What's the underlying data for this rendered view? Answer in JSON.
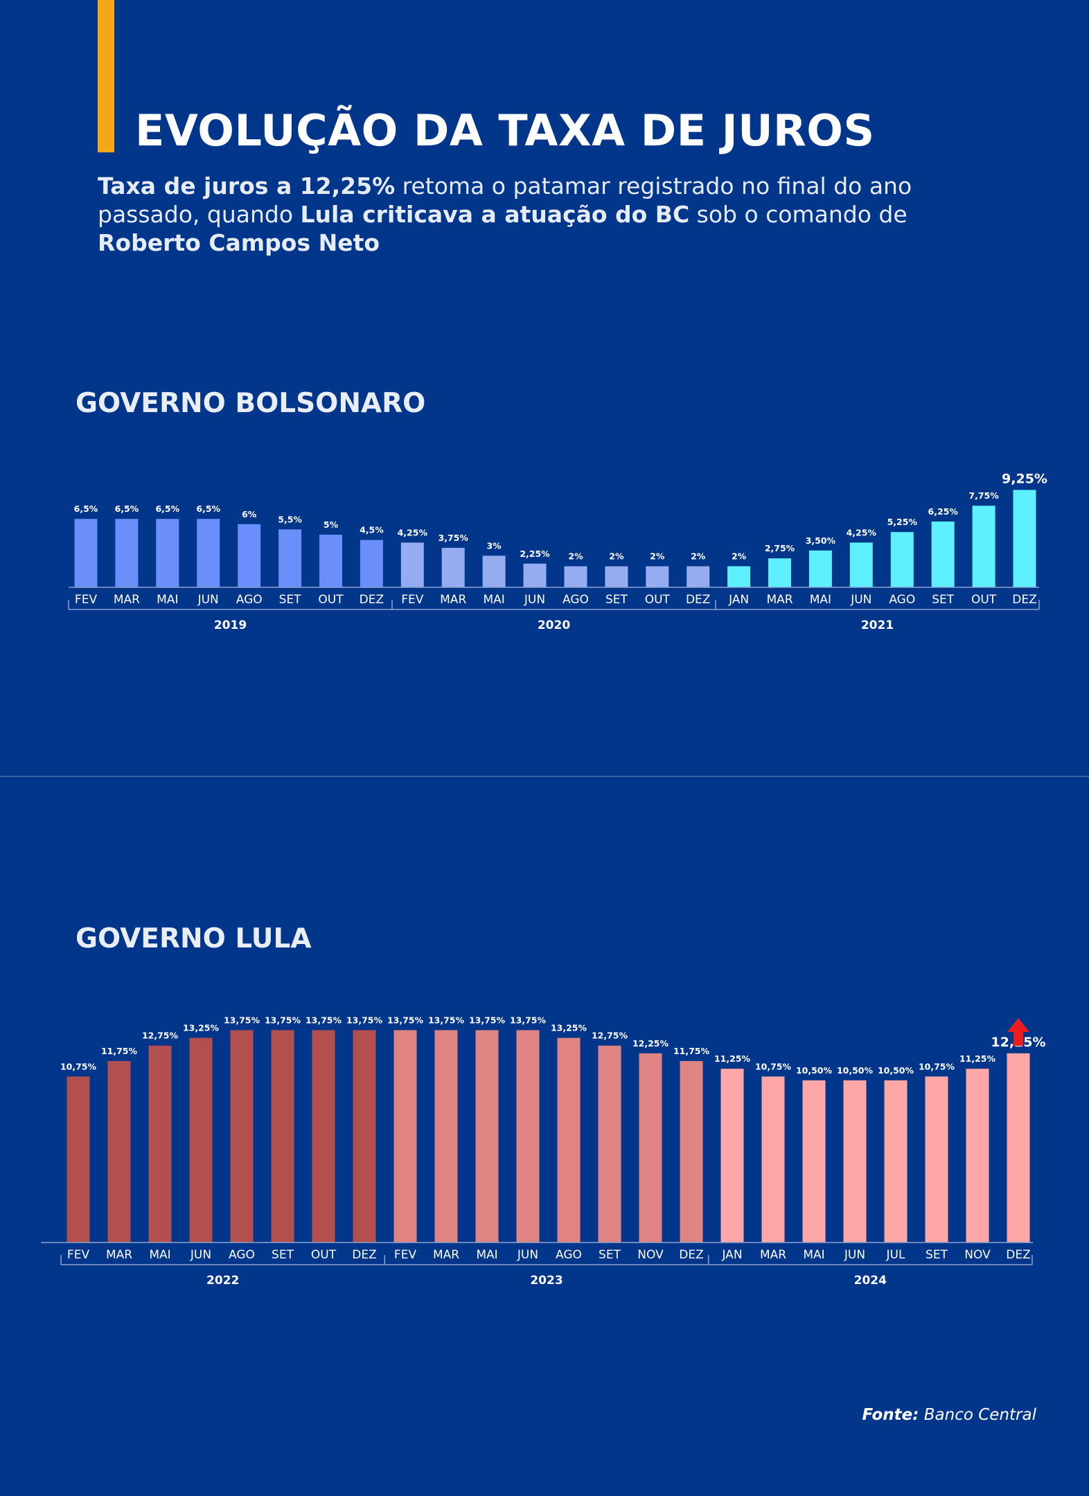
{
  "title": "EVOLUÇÃO DA TAXA DE JUROS",
  "subtitle": {
    "line1_bold": "Taxa de juros a 12,25%",
    "line1_rest": " retoma o patamar registrado no final do ano",
    "line2_start": "passado, quando ",
    "line2_bold": "Lula criticava a atuação do BC",
    "line2_rest": " sob o comando de",
    "line3_bold": "Roberto Campos Neto"
  },
  "source": {
    "label": "Fonte:",
    "text": " Banco Central"
  },
  "colors": {
    "background": "#02368a",
    "accent": "#f6a716",
    "bolsonaro_2019": "#6a8ffb",
    "bolsonaro_2020": "#96acf1",
    "bolsonaro_2021": "#5ef0ff",
    "lula_2022": "#b34f4f",
    "lula_2023": "#df8383",
    "lula_2024": "#ffa6a6",
    "arrow": "#ee1c1c"
  },
  "arrow_icon": "up-arrow-icon",
  "chart_data": [
    {
      "type": "bar",
      "title": "GOVERNO BOLSONARO",
      "groups": [
        {
          "year": "2019",
          "categories": [
            "FEV",
            "MAR",
            "MAI",
            "JUN",
            "AGO",
            "SET",
            "OUT",
            "DEZ"
          ],
          "values": [
            6.5,
            6.5,
            6.5,
            6.5,
            6,
            5.5,
            5,
            4.5
          ],
          "labels": [
            "6,5%",
            "6,5%",
            "6,5%",
            "6,5%",
            "6%",
            "5,5%",
            "5%",
            "4,5%"
          ]
        },
        {
          "year": "2020",
          "categories": [
            "FEV",
            "MAR",
            "MAI",
            "JUN",
            "AGO",
            "SET",
            "OUT",
            "DEZ"
          ],
          "values": [
            4.25,
            3.75,
            3,
            2.25,
            2,
            2,
            2,
            2
          ],
          "labels": [
            "4,25%",
            "3,75%",
            "3%",
            "2,25%",
            "2%",
            "2%",
            "2%",
            "2%"
          ]
        },
        {
          "year": "2021",
          "categories": [
            "JAN",
            "MAR",
            "MAI",
            "JUN",
            "AGO",
            "SET",
            "OUT",
            "DEZ"
          ],
          "values": [
            2,
            2.75,
            3.5,
            4.25,
            5.25,
            6.25,
            7.75,
            9.25
          ],
          "labels": [
            "2%",
            "2,75%",
            "3,50%",
            "4,25%",
            "5,25%",
            "6,25%",
            "7,75%",
            "9,25%"
          ]
        }
      ]
    },
    {
      "type": "bar",
      "title": "GOVERNO LULA",
      "groups": [
        {
          "year": "2022",
          "categories": [
            "FEV",
            "MAR",
            "MAI",
            "JUN",
            "AGO",
            "SET",
            "OUT",
            "DEZ"
          ],
          "values": [
            10.75,
            11.75,
            12.75,
            13.25,
            13.75,
            13.75,
            13.75,
            13.75
          ],
          "labels": [
            "10,75%",
            "11,75%",
            "12,75%",
            "13,25%",
            "13,75%",
            "13,75%",
            "13,75%",
            "13,75%"
          ]
        },
        {
          "year": "2023",
          "categories": [
            "FEV",
            "MAR",
            "MAI",
            "JUN",
            "AGO",
            "SET",
            "NOV",
            "DEZ"
          ],
          "values": [
            13.75,
            13.75,
            13.75,
            13.75,
            13.25,
            12.75,
            12.25,
            11.75
          ],
          "labels": [
            "13,75%",
            "13,75%",
            "13,75%",
            "13,75%",
            "13,25%",
            "12,75%",
            "12,25%",
            "11,75%"
          ]
        },
        {
          "year": "2024",
          "categories": [
            "JAN",
            "MAR",
            "MAI",
            "JUN",
            "JUL",
            "SET",
            "NOV",
            "DEZ"
          ],
          "values": [
            11.25,
            10.75,
            10.5,
            10.5,
            10.5,
            10.75,
            11.25,
            12.25
          ],
          "labels": [
            "11,25%",
            "10,75%",
            "10,50%",
            "10,50%",
            "10,50%",
            "10,75%",
            "11,25%",
            "12,25%"
          ]
        }
      ]
    }
  ]
}
